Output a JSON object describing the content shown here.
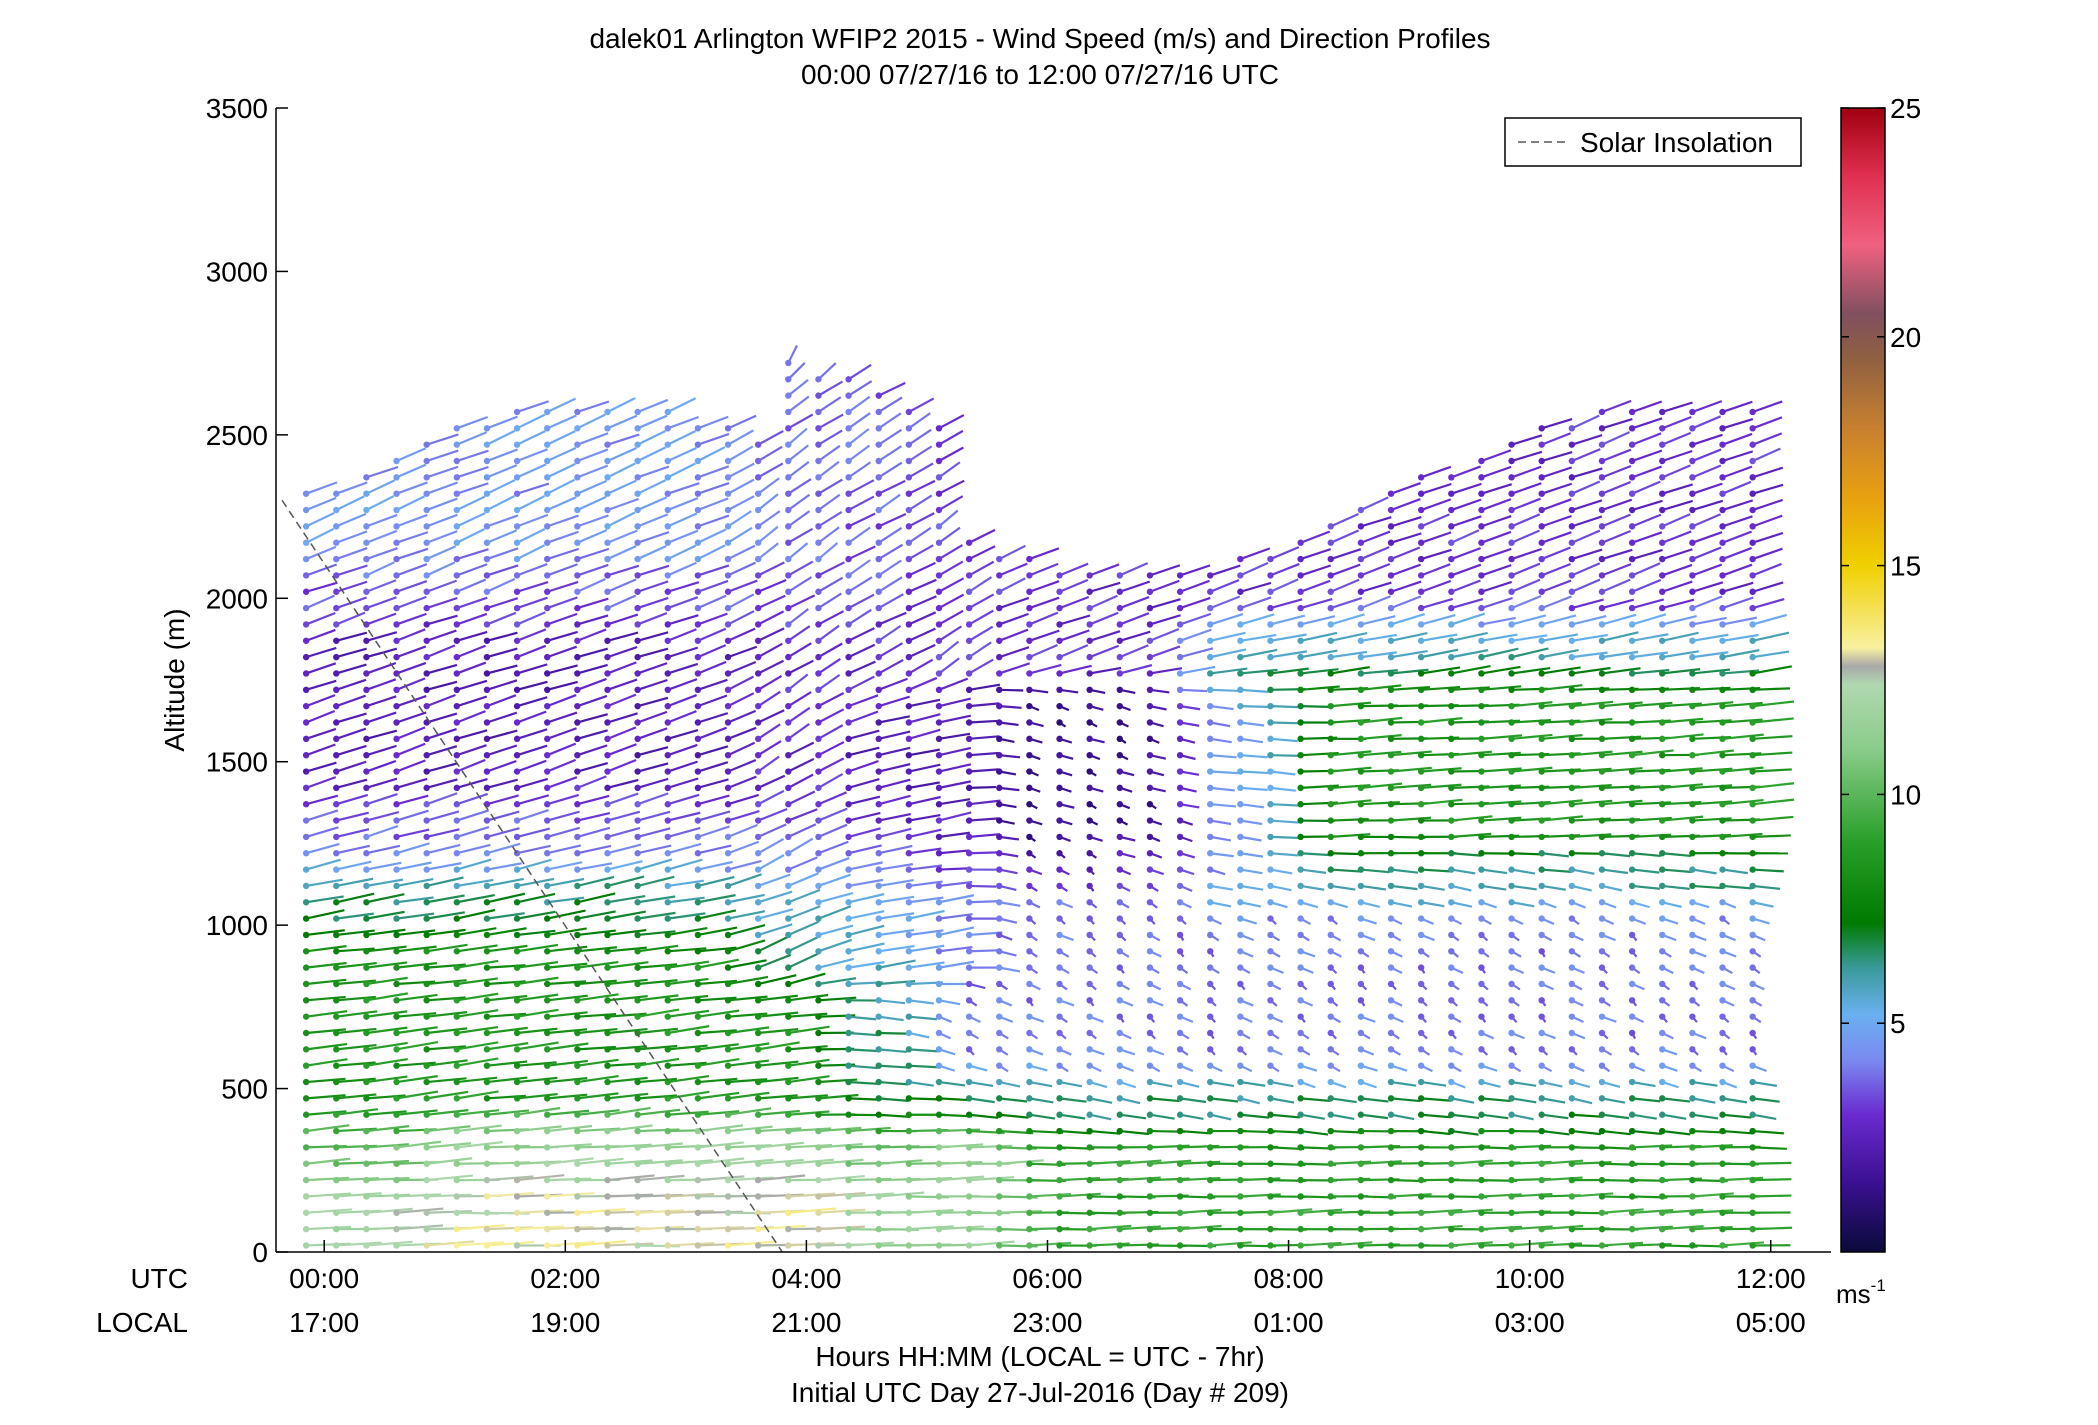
{
  "chart_data": {
    "type": "wind-barb-profile",
    "title": "dalek01 Arlington WFIP2 2015 - Wind Speed (m/s) and Direction Profiles",
    "subtitle": "00:00 07/27/16 to 12:00 07/27/16  UTC",
    "ylabel": "Altitude (m)",
    "xlabel": "Hours HH:MM  (LOCAL = UTC - 7hr)",
    "xlabel2": "Initial UTC Day 27-Jul-2016 (Day # 209)",
    "row_label_utc": "UTC",
    "row_label_local": "LOCAL",
    "xlim_hours": [
      -0.4,
      12.5
    ],
    "ylim": [
      0,
      3500
    ],
    "y_ticks": [
      0,
      500,
      1000,
      1500,
      2000,
      2500,
      3000,
      3500
    ],
    "x_ticks_hours": [
      0,
      2,
      4,
      6,
      8,
      10,
      12
    ],
    "x_tick_labels_utc": [
      "00:00",
      "02:00",
      "04:00",
      "06:00",
      "08:00",
      "10:00",
      "12:00"
    ],
    "x_tick_labels_local": [
      "17:00",
      "19:00",
      "21:00",
      "23:00",
      "01:00",
      "03:00",
      "05:00"
    ],
    "legend": {
      "label": "Solar Insolation",
      "placement": "top-right",
      "style": "dashed"
    },
    "solar_insolation_line": {
      "x_hours": [
        -0.35,
        3.8
      ],
      "y": [
        2300,
        0
      ]
    },
    "colorbar": {
      "range": [
        0,
        25
      ],
      "ticks": [
        5,
        10,
        15,
        20,
        25
      ],
      "unit_label": "ms",
      "unit_exp": "-1",
      "stops": [
        [
          0,
          "#0a0a3a"
        ],
        [
          1.5,
          "#3a1090"
        ],
        [
          3,
          "#6a2ad0"
        ],
        [
          4.2,
          "#7a8af0"
        ],
        [
          5.2,
          "#6ab0f0"
        ],
        [
          6.2,
          "#3a9a9a"
        ],
        [
          7.2,
          "#007a00"
        ],
        [
          9,
          "#2aa02a"
        ],
        [
          11,
          "#8acc8a"
        ],
        [
          12.4,
          "#b0d8b0"
        ],
        [
          12.8,
          "#a8a8a8"
        ],
        [
          13.2,
          "#f8f0a0"
        ],
        [
          15,
          "#f0d000"
        ],
        [
          16.5,
          "#e8a010"
        ],
        [
          18,
          "#c88030"
        ],
        [
          19.5,
          "#906040"
        ],
        [
          20.5,
          "#805060"
        ],
        [
          22,
          "#f06080"
        ],
        [
          23.5,
          "#e03050"
        ],
        [
          25,
          "#a00010"
        ]
      ]
    },
    "profile_times_hours": {
      "start": -0.15,
      "end": 12.05,
      "step": 0.25
    },
    "profile_heights_m": {
      "start": 20,
      "end": 2620,
      "step": 50
    },
    "wind_regimes": [
      {
        "t": [
          -0.2,
          3.8
        ],
        "h": [
          0,
          300
        ],
        "speed": 12,
        "dir_deg": 255
      },
      {
        "t": [
          1.2,
          5.3
        ],
        "h": [
          50,
          310
        ],
        "speed": 14,
        "dir_deg": 255
      },
      {
        "t": [
          -0.2,
          4.6
        ],
        "h": [
          300,
          1050
        ],
        "speed": 8.5,
        "dir_deg": 265
      },
      {
        "t": [
          -0.2,
          4.6
        ],
        "h": [
          1050,
          1300
        ],
        "speed": 4.8,
        "dir_deg": 280
      },
      {
        "t": [
          -0.2,
          4.6
        ],
        "h": [
          1300,
          2000
        ],
        "speed": 2.5,
        "dir_deg": 290
      },
      {
        "t": [
          -0.2,
          4.6
        ],
        "h": [
          2000,
          2600
        ],
        "speed": 4.5,
        "dir_deg": 300
      },
      {
        "t": [
          3.8,
          5.0
        ],
        "h": [
          900,
          2800
        ],
        "speed": 3.5,
        "dir_deg": 345
      },
      {
        "t": [
          4.6,
          7.6
        ],
        "h": [
          1200,
          1650
        ],
        "speed": 1.5,
        "dir_deg": 200
      },
      {
        "t": [
          4.6,
          12.1
        ],
        "h": [
          0,
          450
        ],
        "speed": 9,
        "dir_deg": 250
      },
      {
        "t": [
          4.6,
          12.1
        ],
        "h": [
          450,
          1150
        ],
        "speed": 4,
        "dir_deg": 195
      },
      {
        "t": [
          7.6,
          12.1
        ],
        "h": [
          1150,
          1850
        ],
        "speed": 8.5,
        "dir_deg": 255
      },
      {
        "t": [
          4.6,
          12.1
        ],
        "h": [
          1850,
          2700
        ],
        "speed": 3,
        "dir_deg": 295
      }
    ]
  }
}
